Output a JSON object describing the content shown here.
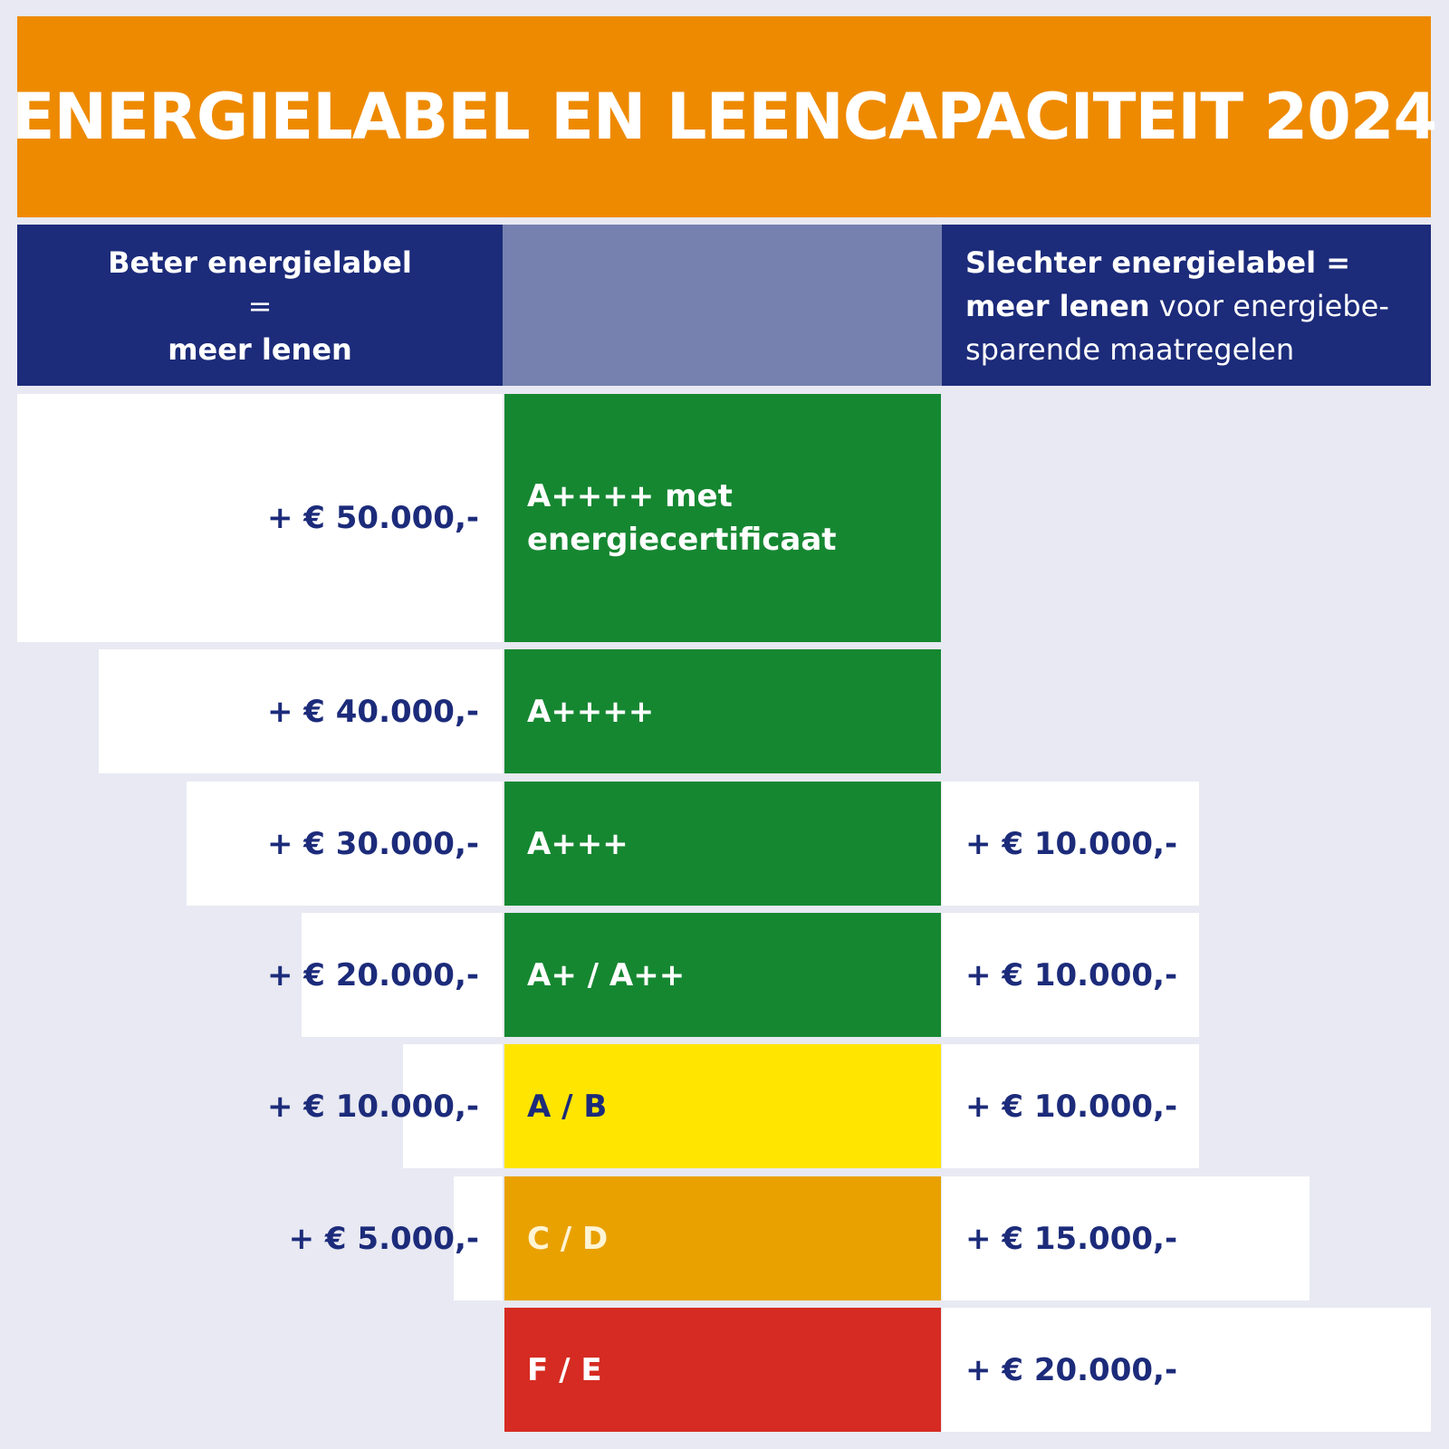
{
  "title": "ENERGIELABEL EN LEENCAPACITEIT 2024",
  "header": {
    "left_line1": "Beter energielabel",
    "left_line2": "=",
    "left_line3": "meer lenen",
    "right_bold1": "Slechter energielabel =",
    "right_bold2": "meer lenen",
    "right_normal": " voor energiebe-sparende maatregelen"
  },
  "rows": [
    {
      "label": "A++++ met\nenergiecertificaat",
      "left_amount": "+ € 50.000,-",
      "right_amount": "",
      "color": "#168731"
    },
    {
      "label": "A++++",
      "left_amount": "+ € 40.000,-",
      "right_amount": "",
      "color": "#168731"
    },
    {
      "label": "A+++",
      "left_amount": "+ € 30.000,-",
      "right_amount": "+ € 10.000,-",
      "color": "#168731"
    },
    {
      "label": "A+ / A++",
      "left_amount": "+ € 20.000,-",
      "right_amount": "+ € 10.000,-",
      "color": "#168731"
    },
    {
      "label": "A / B",
      "left_amount": "+ € 10.000,-",
      "right_amount": "+ € 10.000,-",
      "color": "#ffe500"
    },
    {
      "label": "C / D",
      "left_amount": "+ € 5.000,-",
      "right_amount": "+ € 15.000,-",
      "color": "#e9a100"
    },
    {
      "label": "F / E",
      "left_amount": "",
      "right_amount": "+ € 20.000,-",
      "color": "#d62b22"
    }
  ]
}
